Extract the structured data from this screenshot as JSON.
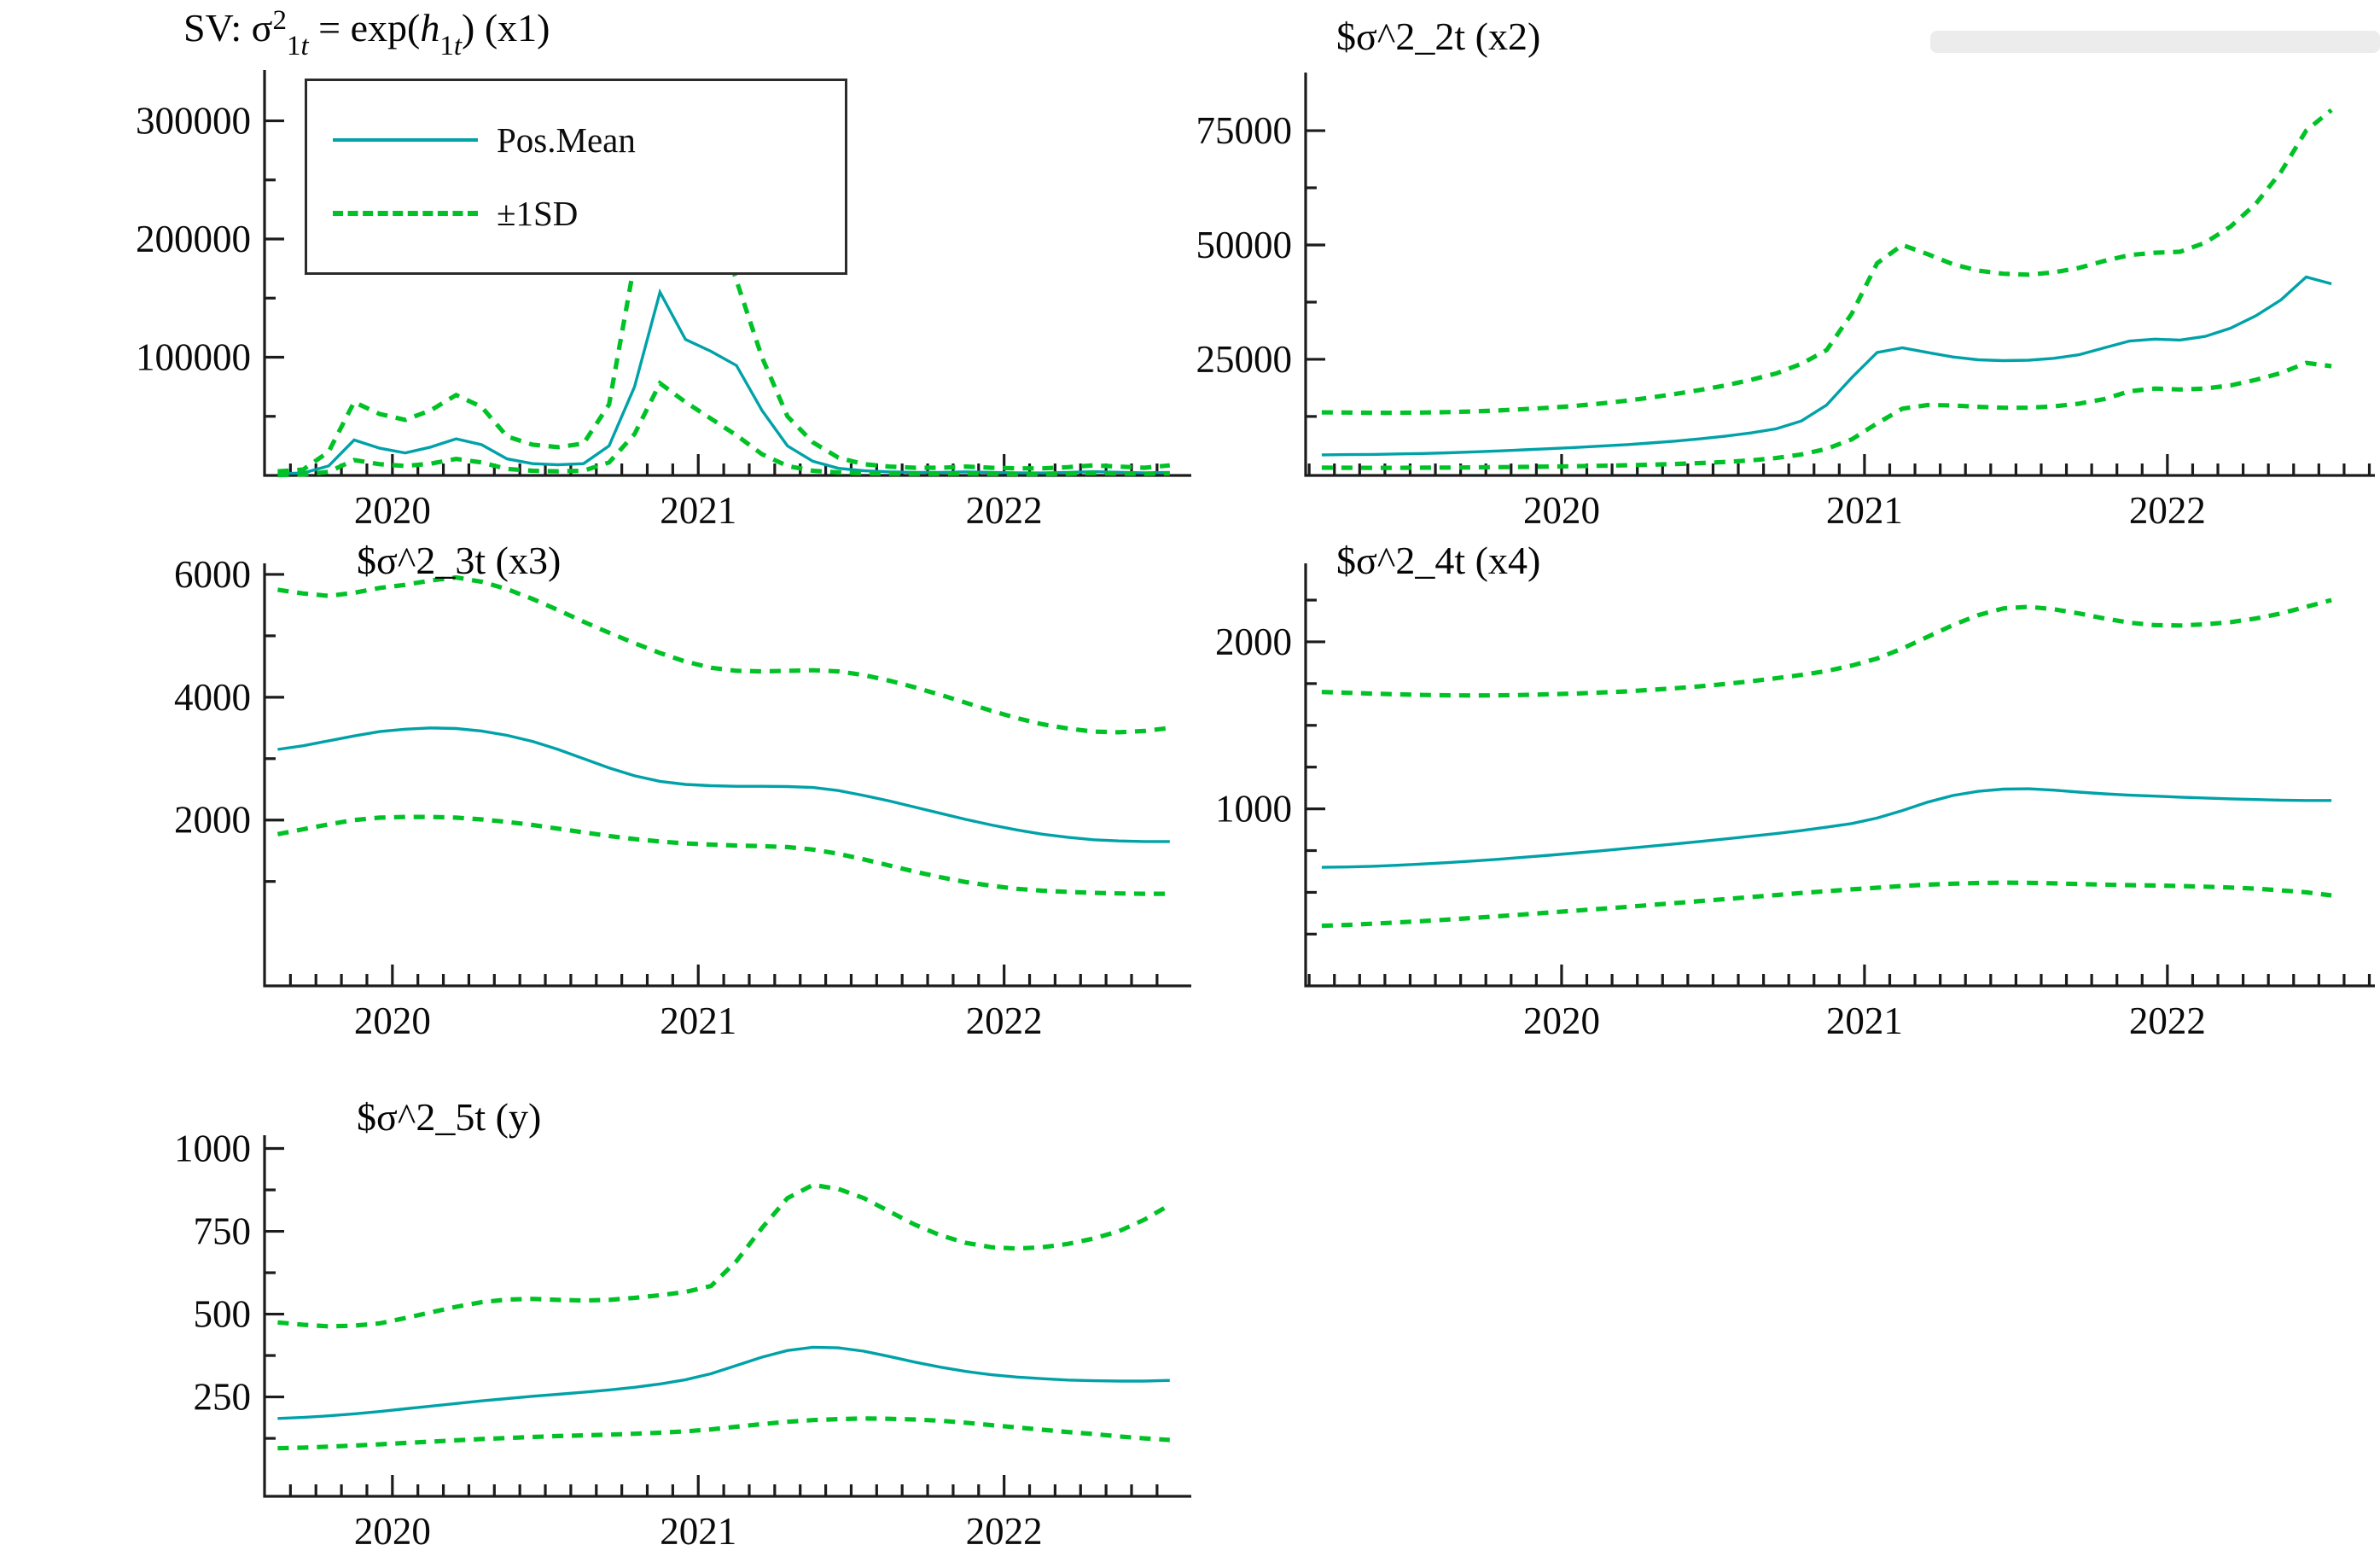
{
  "page": {
    "background": "#ffffff"
  },
  "colors": {
    "mean": "#00a2a8",
    "band": "#00c226",
    "axis": "#1c1c1c",
    "text": "#0a0a0a"
  },
  "legend": {
    "position": "top-left-of-first-chart",
    "items": [
      {
        "label": "Pos.Mean",
        "style": "solid",
        "color": "#00a2a8"
      },
      {
        "label": "±1SD",
        "style": "dashed",
        "color": "#00c226"
      }
    ]
  },
  "chart_data": [
    {
      "id": "sv-x1",
      "type": "line",
      "title": "SV: σ²_1t = exp(h_1t) (x1)",
      "title_segments": [
        {
          "text": "SV: σ",
          "style": "n"
        },
        {
          "text": "2",
          "style": "sup"
        },
        {
          "text": "1",
          "style": "sub"
        },
        {
          "text": "t",
          "style": "subi"
        },
        {
          "text": " = exp(",
          "style": "n"
        },
        {
          "text": "h",
          "style": "i"
        },
        {
          "text": "1",
          "style": "sub"
        },
        {
          "text": "t",
          "style": "subi"
        },
        {
          "text": ") (x1)",
          "style": "n"
        }
      ],
      "xlabel": "",
      "ylabel": "",
      "legend": true,
      "grid": false,
      "x_start": 2019.625,
      "x_step": 0.08333,
      "xlim": [
        2019.582,
        2022.612
      ],
      "ylim": [
        0,
        343000
      ],
      "x_year_ticks": [
        2020,
        2021,
        2022
      ],
      "x_tick_range": [
        2019.6667,
        2022.5833
      ],
      "y_ticks": [
        {
          "v": 100000,
          "label": "100000"
        },
        {
          "v": 200000,
          "label": "200000"
        },
        {
          "v": 300000,
          "label": "300000"
        }
      ],
      "y_minor": [
        50000,
        150000,
        250000
      ],
      "series": [
        {
          "name": "Pos.Mean",
          "style": "solid",
          "values": [
            1500,
            2000,
            8000,
            30000,
            23000,
            19000,
            24000,
            31000,
            26000,
            14000,
            10000,
            9000,
            10000,
            25000,
            75000,
            155000,
            115000,
            105000,
            93000,
            55000,
            25000,
            12000,
            6000,
            4000,
            3000,
            2600,
            2500,
            3000,
            2600,
            2200,
            2100,
            2600,
            3200,
            2700,
            2200,
            2600
          ]
        },
        {
          "name": "+1SD",
          "style": "dashed",
          "values": [
            3500,
            5000,
            20000,
            62000,
            52000,
            47000,
            55000,
            68000,
            58000,
            33000,
            26000,
            24000,
            27000,
            60000,
            180000,
            325000,
            263000,
            230000,
            165000,
            100000,
            50000,
            28000,
            15000,
            9500,
            7500,
            6500,
            6500,
            7500,
            6500,
            6000,
            6000,
            7000,
            8500,
            7500,
            6500,
            8500
          ]
        },
        {
          "name": "-1SD",
          "style": "dashed",
          "values": [
            300,
            800,
            3000,
            13000,
            9500,
            8000,
            10000,
            14000,
            11000,
            5500,
            4000,
            3500,
            4000,
            11000,
            35000,
            78000,
            62000,
            48000,
            34000,
            18000,
            8000,
            4000,
            2500,
            1800,
            1500,
            1300,
            1300,
            1600,
            1300,
            1100,
            1100,
            1400,
            2000,
            1600,
            1300,
            1700
          ]
        }
      ],
      "layout": {
        "plot": [
          310,
          82,
          1396,
          557
        ],
        "title_pos": [
          215,
          6
        ],
        "legend_box": [
          357,
          92,
          630,
          212
        ]
      }
    },
    {
      "id": "sv-x2",
      "type": "line",
      "title": "$σ^2_2t (x2)",
      "xlabel": "",
      "ylabel": "",
      "legend": false,
      "grid": false,
      "x_start": 2019.2083,
      "x_step": 0.08333,
      "xlim": [
        2019.155,
        2022.685
      ],
      "ylim": [
        -400,
        87700
      ],
      "x_year_ticks": [
        2020,
        2021,
        2022
      ],
      "x_tick_range": [
        2019.1667,
        2022.6667
      ],
      "y_ticks": [
        {
          "v": 25000,
          "label": "25000"
        },
        {
          "v": 50000,
          "label": "50000"
        },
        {
          "v": 75000,
          "label": "75000"
        }
      ],
      "y_minor": [
        12500,
        37500,
        62500
      ],
      "series": [
        {
          "name": "Pos.Mean",
          "style": "solid",
          "values": [
            4100,
            4150,
            4200,
            4300,
            4400,
            4550,
            4750,
            4950,
            5200,
            5450,
            5700,
            6000,
            6300,
            6700,
            7100,
            7600,
            8200,
            8900,
            9800,
            11500,
            15000,
            21000,
            26500,
            27500,
            26500,
            25500,
            24900,
            24700,
            24800,
            25200,
            26000,
            27500,
            29000,
            29400,
            29200,
            30000,
            31800,
            34500,
            38000,
            43000,
            41500
          ]
        },
        {
          "name": "+1SD",
          "style": "dashed",
          "values": [
            13400,
            13350,
            13300,
            13300,
            13350,
            13450,
            13600,
            13800,
            14100,
            14400,
            14800,
            15300,
            15900,
            16600,
            17400,
            18300,
            19300,
            20500,
            21900,
            24000,
            27000,
            35000,
            46000,
            50000,
            48000,
            45800,
            44400,
            43700,
            43500,
            44000,
            45000,
            46500,
            47800,
            48300,
            48500,
            50500,
            54000,
            59000,
            66000,
            75000,
            79500
          ]
        },
        {
          "name": "-1SD",
          "style": "dashed",
          "values": [
            1300,
            1280,
            1270,
            1270,
            1290,
            1320,
            1360,
            1410,
            1470,
            1540,
            1620,
            1710,
            1820,
            1950,
            2100,
            2300,
            2550,
            2900,
            3400,
            4200,
            5400,
            7500,
            11000,
            14200,
            15000,
            14900,
            14600,
            14400,
            14400,
            14700,
            15300,
            16300,
            18000,
            18600,
            18400,
            18600,
            19300,
            20500,
            22000,
            24200,
            23500
          ]
        }
      ],
      "layout": {
        "plot": [
          1530,
          85,
          2783,
          557
        ],
        "title_pos": [
          1566,
          16
        ]
      }
    },
    {
      "id": "sv-x3",
      "type": "line",
      "title": "$σ^2_3t (x3)",
      "xlabel": "",
      "ylabel": "",
      "legend": false,
      "grid": false,
      "x_start": 2019.625,
      "x_step": 0.08333,
      "xlim": [
        2019.582,
        2022.612
      ],
      "ylim": [
        -700,
        6180
      ],
      "x_year_ticks": [
        2020,
        2021,
        2022
      ],
      "x_tick_range": [
        2019.6667,
        2022.5833
      ],
      "y_ticks": [
        {
          "v": 2000,
          "label": "2000"
        },
        {
          "v": 4000,
          "label": "4000"
        },
        {
          "v": 6000,
          "label": "6000"
        }
      ],
      "y_minor": [
        1000,
        3000,
        5000
      ],
      "series": [
        {
          "name": "Pos.Mean",
          "style": "solid",
          "values": [
            3150,
            3210,
            3290,
            3370,
            3440,
            3480,
            3500,
            3490,
            3450,
            3380,
            3280,
            3150,
            3000,
            2850,
            2720,
            2630,
            2580,
            2560,
            2550,
            2550,
            2545,
            2530,
            2480,
            2400,
            2310,
            2210,
            2110,
            2010,
            1920,
            1840,
            1770,
            1720,
            1680,
            1660,
            1650,
            1650
          ]
        },
        {
          "name": "+1SD",
          "style": "dashed",
          "values": [
            5750,
            5690,
            5650,
            5700,
            5780,
            5830,
            5900,
            5950,
            5880,
            5760,
            5600,
            5420,
            5230,
            5050,
            4880,
            4720,
            4580,
            4480,
            4430,
            4420,
            4430,
            4440,
            4420,
            4360,
            4270,
            4160,
            4040,
            3910,
            3780,
            3660,
            3560,
            3490,
            3440,
            3430,
            3450,
            3500
          ]
        },
        {
          "name": "-1SD",
          "style": "dashed",
          "values": [
            1770,
            1850,
            1930,
            2000,
            2040,
            2050,
            2050,
            2040,
            2010,
            1970,
            1920,
            1860,
            1800,
            1740,
            1690,
            1650,
            1620,
            1600,
            1585,
            1575,
            1560,
            1520,
            1450,
            1360,
            1260,
            1160,
            1070,
            990,
            930,
            880,
            850,
            830,
            815,
            805,
            800,
            800
          ]
        }
      ],
      "layout": {
        "plot": [
          310,
          660,
          1396,
          1155
        ],
        "title_pos": [
          418,
          630
        ]
      }
    },
    {
      "id": "sv-x4",
      "type": "line",
      "title": "$σ^2_4t (x4)",
      "xlabel": "",
      "ylabel": "",
      "legend": false,
      "grid": false,
      "x_start": 2019.2083,
      "x_step": 0.08333,
      "xlim": [
        2019.155,
        2022.685
      ],
      "ylim": [
        -60,
        2470
      ],
      "x_year_ticks": [
        2020,
        2021,
        2022
      ],
      "x_tick_range": [
        2019.1667,
        2022.6667
      ],
      "y_ticks": [
        {
          "v": 1000,
          "label": "1000"
        },
        {
          "v": 2000,
          "label": "2000"
        }
      ],
      "y_minor": [
        250,
        500,
        750,
        1250,
        1500,
        1750,
        2250
      ],
      "series": [
        {
          "name": "Pos.Mean",
          "style": "solid",
          "values": [
            650,
            652,
            656,
            662,
            670,
            678,
            688,
            698,
            710,
            722,
            735,
            748,
            762,
            776,
            790,
            805,
            820,
            836,
            852,
            870,
            890,
            912,
            945,
            990,
            1040,
            1080,
            1105,
            1118,
            1120,
            1112,
            1100,
            1090,
            1082,
            1076,
            1070,
            1065,
            1060,
            1056,
            1052,
            1050,
            1050
          ]
        },
        {
          "name": "+1SD",
          "style": "dashed",
          "values": [
            1700,
            1695,
            1690,
            1686,
            1682,
            1680,
            1679,
            1680,
            1682,
            1686,
            1690,
            1696,
            1703,
            1712,
            1722,
            1734,
            1748,
            1764,
            1782,
            1802,
            1825,
            1858,
            1900,
            1960,
            2030,
            2100,
            2160,
            2200,
            2210,
            2195,
            2170,
            2140,
            2115,
            2100,
            2098,
            2105,
            2118,
            2140,
            2170,
            2210,
            2250
          ]
        },
        {
          "name": "-1SD",
          "style": "dashed",
          "values": [
            300,
            305,
            312,
            320,
            328,
            337,
            347,
            357,
            368,
            379,
            390,
            401,
            412,
            424,
            436,
            448,
            460,
            472,
            484,
            496,
            507,
            518,
            528,
            538,
            546,
            552,
            556,
            558,
            557,
            554,
            550,
            546,
            543,
            541,
            538,
            534,
            529,
            522,
            512,
            500,
            482
          ]
        }
      ],
      "layout": {
        "plot": [
          1530,
          660,
          2783,
          1155
        ],
        "title_pos": [
          1566,
          630
        ]
      }
    },
    {
      "id": "sv-y",
      "type": "line",
      "title": "$σ^2_5t (y)",
      "xlabel": "",
      "ylabel": "",
      "legend": false,
      "grid": false,
      "x_start": 2019.625,
      "x_step": 0.08333,
      "xlim": [
        2019.582,
        2022.612
      ],
      "ylim": [
        -50,
        1040
      ],
      "x_year_ticks": [
        2020,
        2021,
        2022
      ],
      "x_tick_range": [
        2019.6667,
        2022.5833
      ],
      "y_ticks": [
        {
          "v": 250,
          "label": "250"
        },
        {
          "v": 500,
          "label": "500"
        },
        {
          "v": 750,
          "label": "750"
        },
        {
          "v": 1000,
          "label": "1000"
        }
      ],
      "y_minor": [
        125,
        375,
        625,
        875
      ],
      "series": [
        {
          "name": "Pos.Mean",
          "style": "solid",
          "values": [
            185,
            188,
            193,
            199,
            206,
            214,
            222,
            230,
            238,
            245,
            252,
            258,
            264,
            271,
            279,
            289,
            302,
            320,
            345,
            370,
            390,
            400,
            398,
            388,
            372,
            355,
            340,
            327,
            317,
            310,
            305,
            301,
            299,
            298,
            298,
            300
          ]
        },
        {
          "name": "+1SD",
          "style": "dashed",
          "values": [
            475,
            468,
            463,
            465,
            472,
            488,
            505,
            522,
            536,
            544,
            546,
            543,
            541,
            543,
            549,
            557,
            567,
            585,
            660,
            760,
            850,
            890,
            878,
            850,
            810,
            770,
            738,
            715,
            702,
            698,
            702,
            712,
            728,
            750,
            785,
            830
          ]
        },
        {
          "name": "-1SD",
          "style": "dashed",
          "values": [
            95,
            97,
            100,
            103,
            107,
            111,
            115,
            119,
            123,
            126,
            129,
            132,
            134,
            136,
            139,
            142,
            146,
            152,
            160,
            168,
            175,
            180,
            183,
            185,
            184,
            182,
            178,
            172,
            165,
            158,
            151,
            144,
            138,
            131,
            125,
            120
          ]
        }
      ],
      "layout": {
        "plot": [
          310,
          1330,
          1396,
          1753
        ],
        "title_pos": [
          418,
          1282
        ]
      }
    }
  ]
}
